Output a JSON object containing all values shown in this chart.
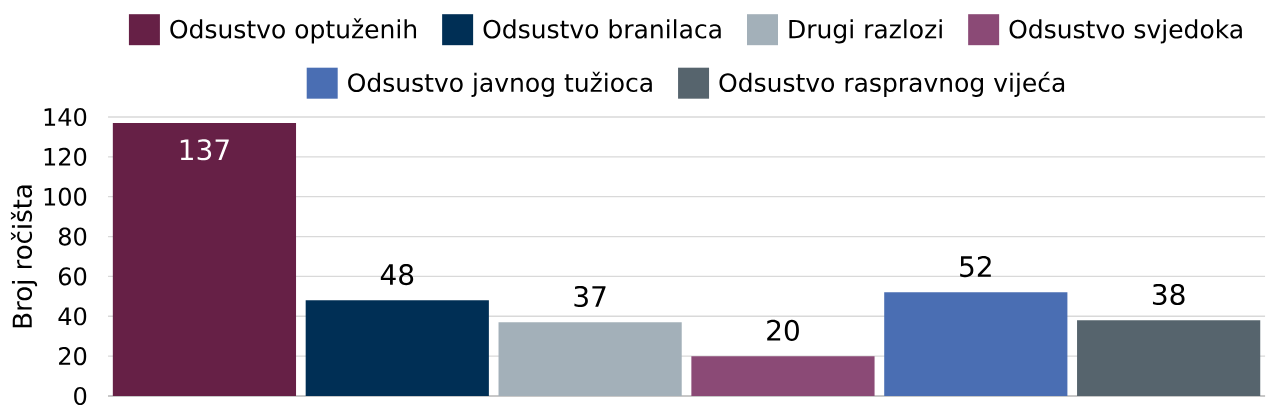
{
  "chart_data": {
    "type": "bar",
    "ylabel": "Broj ročišta",
    "categories": [
      null
    ],
    "series": [
      {
        "name": "Odsustvo optuženih",
        "color": "#662046",
        "values": [
          137
        ]
      },
      {
        "name": "Odsustvo branilaca",
        "color": "#002F55",
        "values": [
          48
        ]
      },
      {
        "name": "Drugi razlozi",
        "color": "#A3B0B9",
        "values": [
          37
        ]
      },
      {
        "name": "Odsustvo svjedoka",
        "color": "#8B4A76",
        "values": [
          20
        ]
      },
      {
        "name": "Odsustvo javnog tužioca",
        "color": "#4A6EB3",
        "values": [
          52
        ]
      },
      {
        "name": "Odsustvo raspravnog vijeća",
        "color": "#56646D",
        "values": [
          38
        ]
      }
    ],
    "ylim": [
      0,
      140
    ],
    "yticks": [
      0,
      20,
      40,
      60,
      80,
      100,
      120,
      140
    ],
    "grid": "y",
    "legend": "top",
    "data_labels": true
  }
}
